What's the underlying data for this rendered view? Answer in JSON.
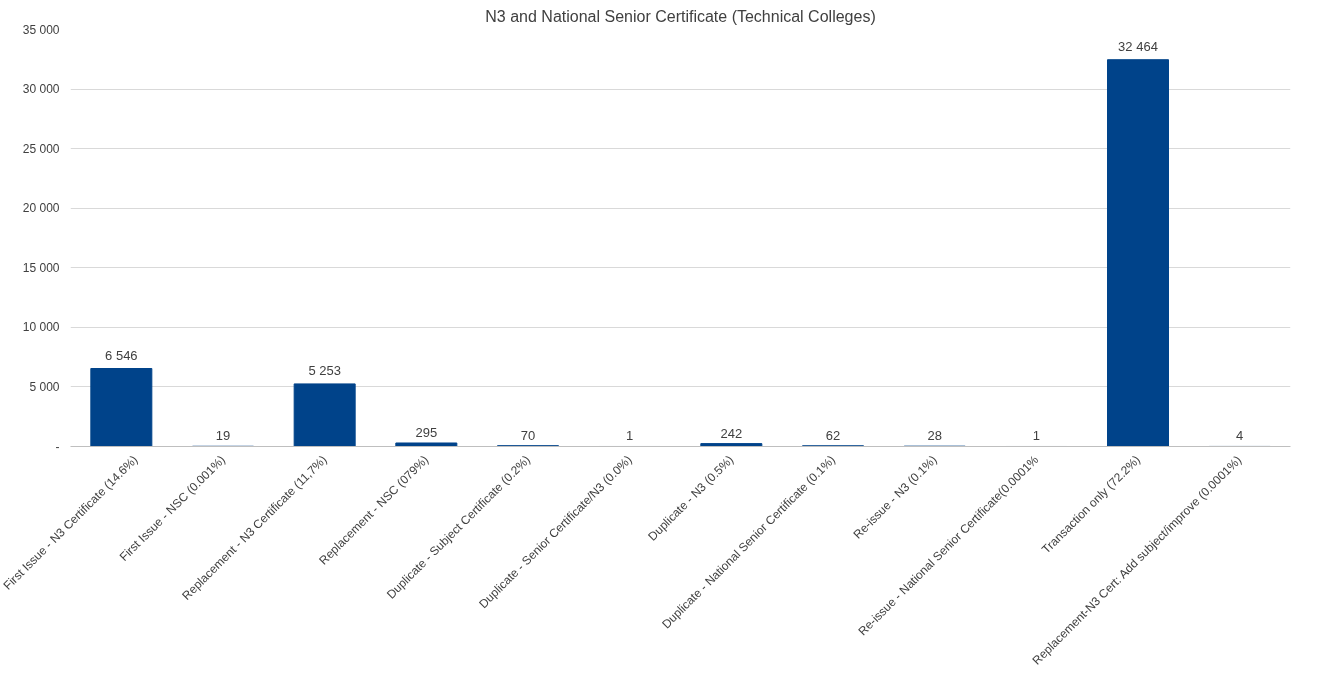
{
  "chart_data": {
    "type": "bar",
    "title": "N3 and National Senior Certificate (Technical Colleges)",
    "categories": [
      "First Issue - N3 Certificate (14.6%)",
      "First Issue - NSC (0.001%)",
      "Replacement - N3 Certificate (11,7%)",
      "Replacement - NSC (079%)",
      "Duplicate - Subject Certificate (0.2%)",
      "Duplicate - Senior Certificate/N3 (0.0%)",
      "Duplicate - N3 (0.5%)",
      "Duplicate - National Senior Certificate (0.1%)",
      "Re-issue - N3 (0.1%)",
      "Re-issue - National Senior Certificate(0.0001%",
      "Transaction only (72.2%)",
      "Replacement-N3 Cert: Add subject/improve (0.0001%)"
    ],
    "values": [
      6546,
      19,
      5253,
      295,
      70,
      1,
      242,
      62,
      28,
      1,
      32464,
      4
    ],
    "value_labels": [
      "6 546",
      "19",
      "5 253",
      "295",
      "70",
      "1",
      "242",
      "62",
      "28",
      "1",
      "32 464",
      "4"
    ],
    "color": "#00438a",
    "ylim": [
      0,
      35000
    ],
    "yticks": [
      {
        "value": 0,
        "label": "-"
      },
      {
        "value": 5000,
        "label": "5 000"
      },
      {
        "value": 10000,
        "label": "10 000"
      },
      {
        "value": 15000,
        "label": "15 000"
      },
      {
        "value": 20000,
        "label": "20 000"
      },
      {
        "value": 25000,
        "label": "25 000"
      },
      {
        "value": 30000,
        "label": "30 000"
      },
      {
        "value": 35000,
        "label": "35 000"
      }
    ],
    "grid": "y"
  }
}
